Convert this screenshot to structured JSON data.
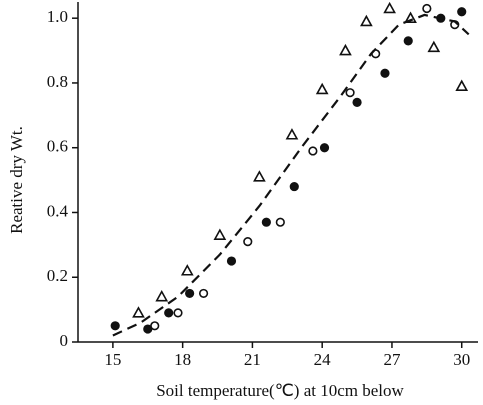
{
  "chart_data": {
    "type": "scatter",
    "x_label": "Soil temperature(℃) at 10cm below",
    "y_label": "Reative dry Wt.",
    "xlim": [
      13.5,
      30.7
    ],
    "xticks": [
      15,
      18,
      21,
      24,
      27,
      30
    ],
    "ylim": [
      0,
      1.05
    ],
    "yticks": [
      0,
      0.2,
      0.4,
      0.6,
      0.8,
      {
        "value": 1.0,
        "label": "1.0"
      }
    ],
    "color": "#111111",
    "series": [
      {
        "marker": "triangle",
        "x": [
          16.1,
          17.1,
          18.2,
          19.6,
          21.3,
          22.7,
          24.0,
          25.0,
          25.9,
          26.9,
          27.8,
          28.8,
          30.0
        ],
        "values": [
          0.09,
          0.14,
          0.22,
          0.33,
          0.51,
          0.64,
          0.78,
          0.9,
          0.99,
          1.03,
          1.0,
          0.91,
          0.79
        ]
      },
      {
        "marker": "open-circle",
        "x": [
          16.8,
          17.8,
          18.9,
          20.8,
          22.2,
          23.6,
          25.2,
          26.3,
          28.5,
          29.7
        ],
        "values": [
          0.05,
          0.09,
          0.15,
          0.31,
          0.37,
          0.59,
          0.77,
          0.89,
          1.03,
          0.98
        ]
      },
      {
        "marker": "filled-circle",
        "x": [
          15.1,
          16.5,
          17.4,
          18.3,
          20.1,
          21.6,
          22.8,
          24.1,
          25.5,
          26.7,
          27.7,
          29.1,
          30.0
        ],
        "values": [
          0.05,
          0.04,
          0.09,
          0.15,
          0.25,
          0.37,
          0.48,
          0.6,
          0.74,
          0.83,
          0.93,
          1.0,
          1.02
        ]
      },
      {
        "marker": "dashed-line",
        "x": [
          15,
          16.2,
          17.8,
          19.6,
          21.3,
          23.1,
          24.8,
          26.1,
          27.3,
          28.4,
          29.7,
          30.3
        ],
        "values": [
          0.02,
          0.06,
          0.14,
          0.27,
          0.42,
          0.6,
          0.76,
          0.89,
          0.98,
          1.01,
          0.99,
          0.95
        ]
      }
    ]
  }
}
